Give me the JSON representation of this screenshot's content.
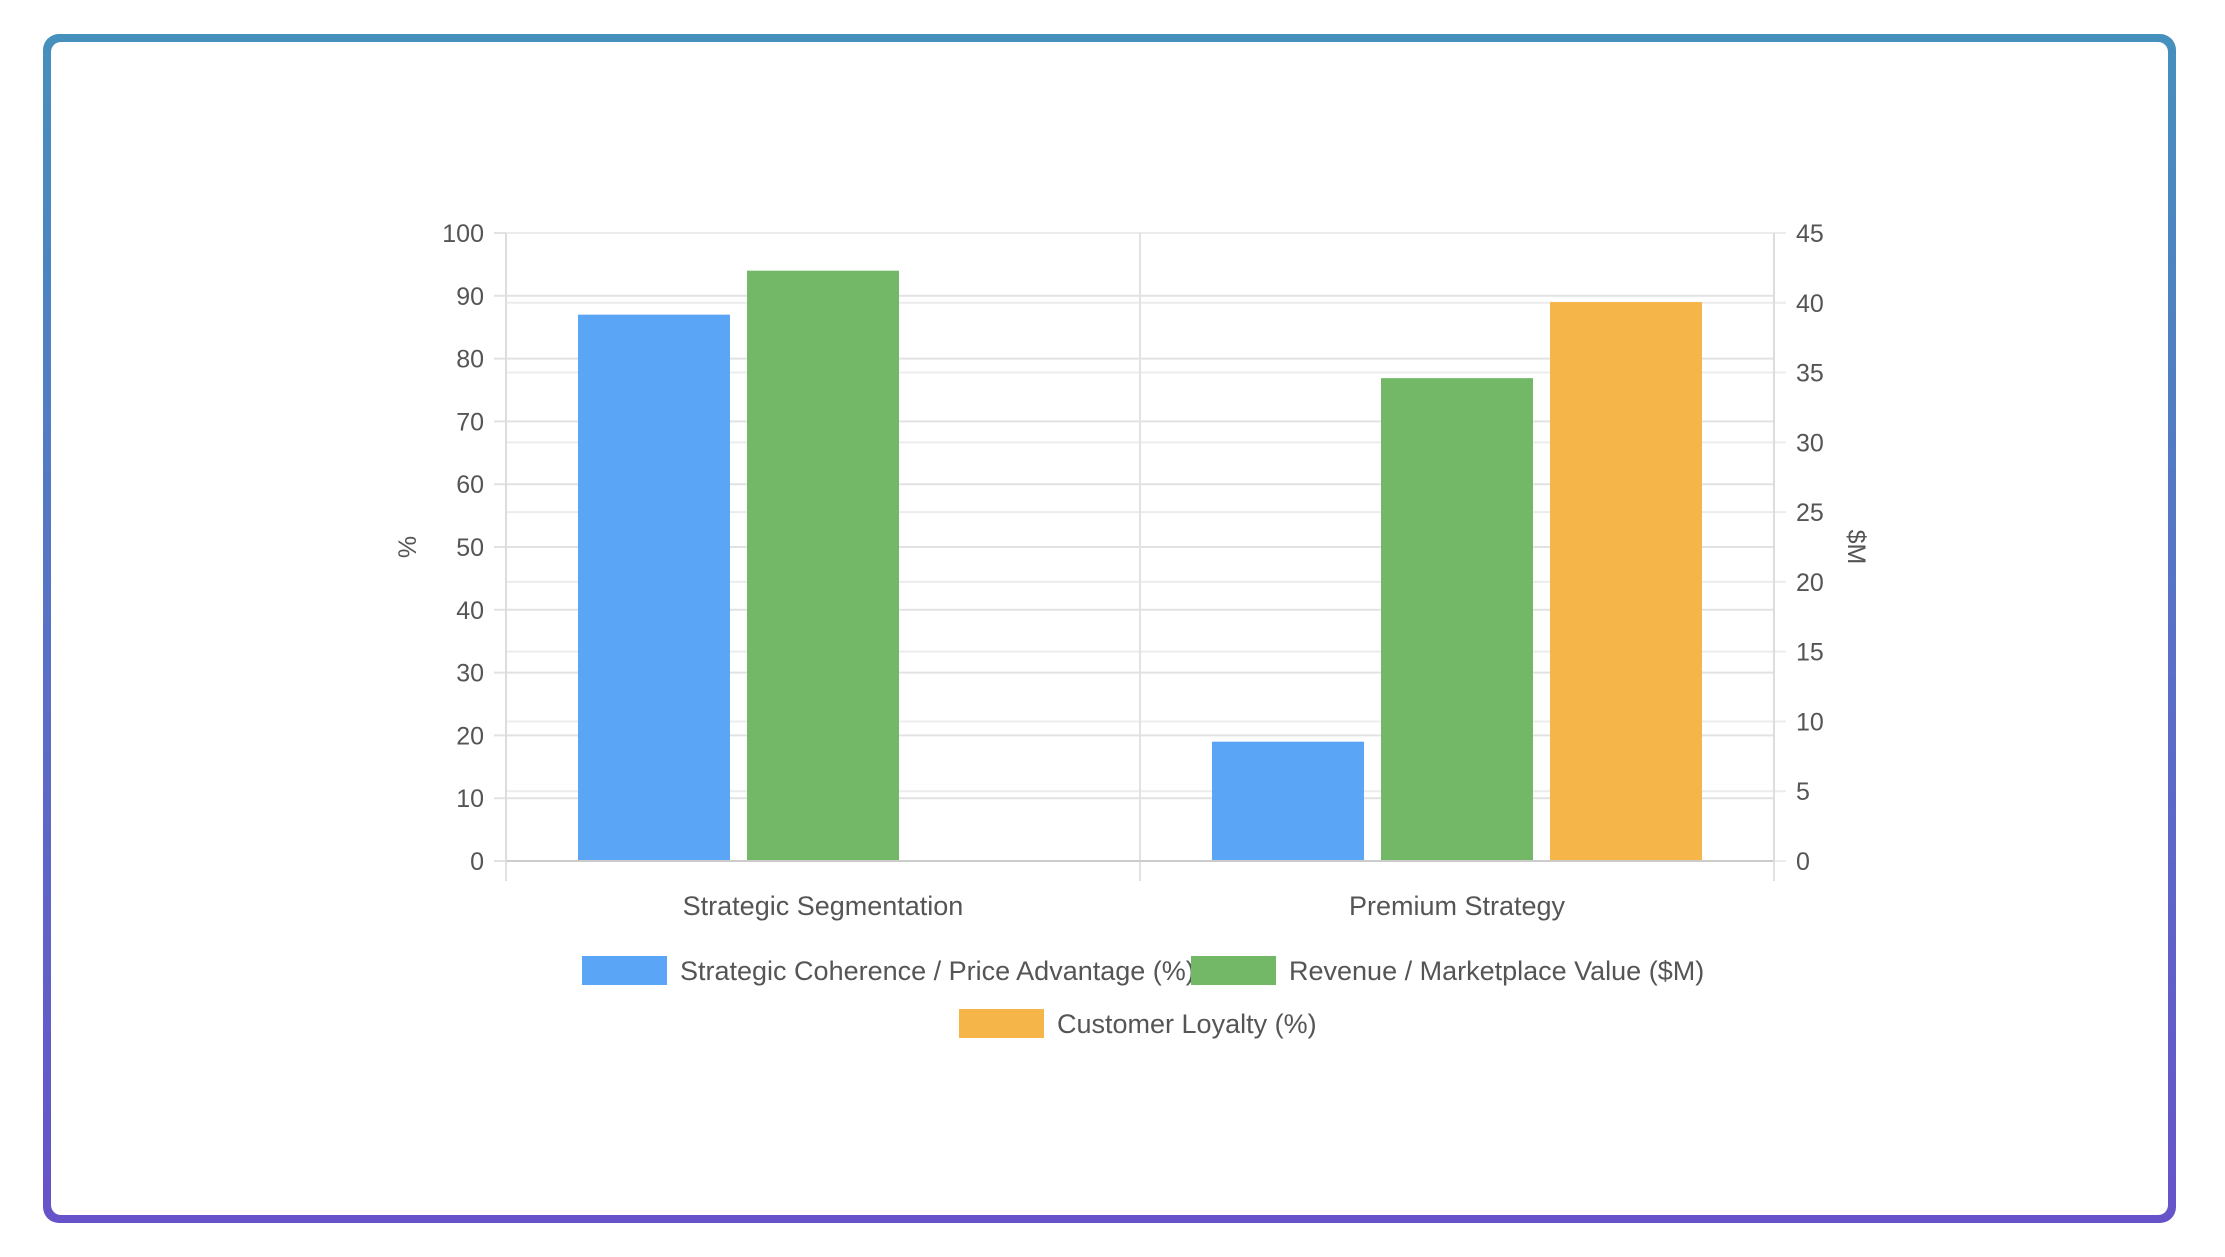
{
  "chart_data": {
    "type": "bar",
    "categories": [
      "Strategic Segmentation",
      "Premium Strategy"
    ],
    "series": [
      {
        "name": "Strategic Coherence / Price Advantage (%)",
        "axis": "left",
        "color": "#5aa5f5",
        "values": [
          87,
          19
        ]
      },
      {
        "name": "Revenue / Marketplace Value ($M)",
        "axis": "right",
        "color": "#72b866",
        "values": [
          42.3,
          34.6
        ]
      },
      {
        "name": "Customer Loyalty (%)",
        "axis": "left",
        "color": "#f5b548",
        "values": [
          null,
          89
        ]
      }
    ],
    "y_left": {
      "label": "%",
      "ylim": [
        0,
        100
      ],
      "ticks": [
        "0",
        "10",
        "20",
        "30",
        "40",
        "50",
        "60",
        "70",
        "80",
        "90",
        "100"
      ]
    },
    "y_right": {
      "label": "$M",
      "ylim": [
        0,
        45
      ],
      "ticks": [
        "0",
        "5",
        "10",
        "15",
        "20",
        "25",
        "30",
        "35",
        "40",
        "45"
      ]
    },
    "grid": true,
    "legend_position": "bottom"
  }
}
